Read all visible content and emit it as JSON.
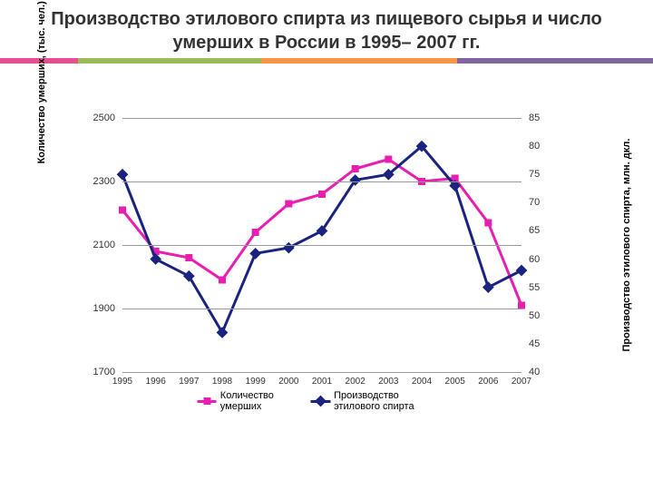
{
  "title": "Производство этилового спирта из пищевого сырья и число умерших в России в 1995– 2007 гг.",
  "accent_colors": [
    "#e84c93",
    "#9bbb59",
    "#f79646",
    "#8064a2"
  ],
  "accent_widths": [
    12,
    28,
    30,
    30
  ],
  "chart": {
    "type": "line",
    "background_color": "#ffffff",
    "grid_color": "#999999",
    "x": {
      "categories": [
        "1995",
        "1996",
        "1997",
        "1998",
        "1999",
        "2000",
        "2001",
        "2002",
        "2003",
        "2004",
        "2005",
        "2006",
        "2007"
      ],
      "fontsize": 10
    },
    "y_left": {
      "title": "Количество умерших,\n(тыс. чел.)",
      "min": 1700,
      "max": 2500,
      "ticks": [
        1700,
        1900,
        2100,
        2300,
        2500
      ],
      "fontsize": 11
    },
    "y_right": {
      "title": "Производство этилового спирта,\nмлн. дкл.",
      "min": 40,
      "max": 85,
      "ticks": [
        40,
        45,
        50,
        55,
        60,
        65,
        70,
        75,
        80,
        85
      ],
      "fontsize": 11
    },
    "series": [
      {
        "name": "Количество умерших",
        "axis": "left",
        "color": "#e61fb0",
        "line_width": 3,
        "marker": "square",
        "marker_size": 8,
        "values": [
          2210,
          2080,
          2060,
          1990,
          2140,
          2230,
          2260,
          2340,
          2370,
          2300,
          2310,
          2170,
          1910
        ]
      },
      {
        "name": "Производство этилового спирта",
        "axis": "right",
        "color": "#1a237e",
        "line_width": 3,
        "marker": "diamond",
        "marker_size": 9,
        "values": [
          75,
          60,
          57,
          47,
          61,
          62,
          65,
          74,
          75,
          80,
          73,
          55,
          58
        ]
      }
    ],
    "legend": {
      "labels": [
        "Количество умерших",
        "Производство этилового спирта"
      ],
      "fontsize": 11
    }
  }
}
